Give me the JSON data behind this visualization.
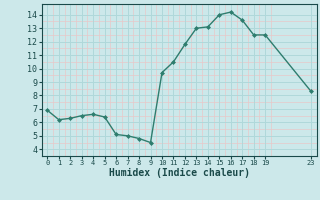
{
  "x": [
    0,
    1,
    2,
    3,
    4,
    5,
    6,
    7,
    8,
    9,
    10,
    11,
    12,
    13,
    14,
    15,
    16,
    17,
    18,
    19,
    23
  ],
  "y": [
    6.9,
    6.2,
    6.3,
    6.5,
    6.6,
    6.4,
    5.1,
    5.0,
    4.8,
    4.5,
    9.7,
    10.5,
    11.8,
    13.0,
    13.1,
    14.0,
    14.2,
    13.6,
    12.5,
    12.5,
    8.3
  ],
  "line_color": "#2e7d6e",
  "marker": "D",
  "marker_size": 2.0,
  "bg_color": "#cce8ea",
  "grid_color_major": "#b0d8da",
  "grid_color_minor": "#e8c8c8",
  "xlabel": "Humidex (Indice chaleur)",
  "xlabel_fontsize": 7,
  "xlabel_color": "#1a4a4a",
  "tick_color": "#1a4a4a",
  "ylim": [
    3.5,
    14.8
  ],
  "xlim": [
    -0.5,
    23.5
  ],
  "yticks": [
    4,
    5,
    6,
    7,
    8,
    9,
    10,
    11,
    12,
    13,
    14
  ],
  "linewidth": 1.0
}
